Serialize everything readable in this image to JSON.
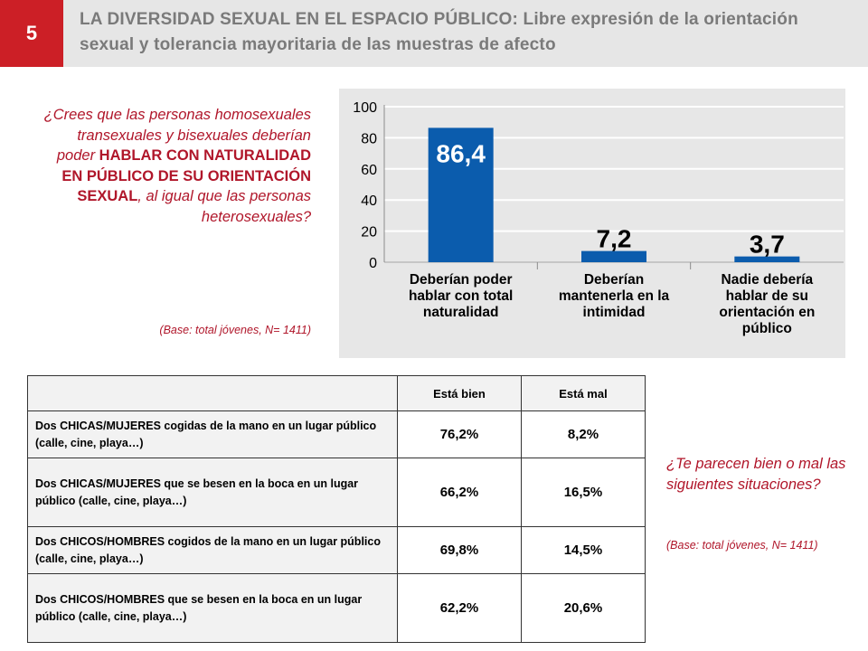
{
  "slide": {
    "number": "5",
    "title": "LA DIVERSIDAD SEXUAL EN EL ESPACIO PÚBLICO: Libre expresión de la orientación sexual  y tolerancia mayoritaria de las muestras de afecto"
  },
  "question1": {
    "part1": "¿Crees que las personas homosexuales transexuales y bisexuales deberían poder ",
    "emphasis": "HABLAR CON NATURALIDAD EN PÚBLICO DE SU ORIENTACIÓN SEXUAL",
    "part2": ", al igual que las personas heterosexuales?",
    "base": "(Base: total jóvenes, N= 1411)"
  },
  "chart_data": {
    "type": "bar",
    "categories": [
      [
        "Deberían poder",
        "hablar con total",
        "naturalidad"
      ],
      [
        "Deberían",
        "mantenerla en la",
        "intimidad"
      ],
      [
        "Nadie debería",
        "hablar de su",
        "orientación en",
        "público"
      ]
    ],
    "values": [
      86.4,
      7.2,
      3.7
    ],
    "value_labels": [
      "86,4",
      "7,2",
      "3,7"
    ],
    "ylim": [
      0,
      100
    ],
    "yticks": [
      0,
      20,
      40,
      60,
      80,
      100
    ],
    "bar_color": "#0b5cad",
    "title": "",
    "xlabel": "",
    "ylabel": ""
  },
  "table": {
    "headers": [
      "",
      "Está bien",
      "Está mal"
    ],
    "rows": [
      {
        "label": "Dos CHICAS/MUJERES  cogidas  de la mano en un lugar público (calle, cine, playa…)",
        "bien": "76,2%",
        "mal": "8,2%"
      },
      {
        "label": "Dos CHICAS/MUJERES  que se besen en la boca en un lugar público (calle, cine, playa…)",
        "bien": "66,2%",
        "mal": "16,5%"
      },
      {
        "label": "Dos CHICOS/HOMBRES  cogidos  de la mano en un lugar público (calle, cine, playa…)",
        "bien": "69,8%",
        "mal": "14,5%"
      },
      {
        "label": "Dos CHICOS/HOMBRES  que se besen en la boca en un lugar público (calle, cine, playa…)",
        "bien": "62,2%",
        "mal": "20,6%"
      }
    ]
  },
  "question2": {
    "text": "¿Te parecen bien o mal las siguientes situaciones?",
    "base": "(Base: total jóvenes, N= 1411)"
  },
  "colors": {
    "accent": "#cc1f26",
    "question_text": "#b0162a",
    "bar": "#0b5cad"
  }
}
